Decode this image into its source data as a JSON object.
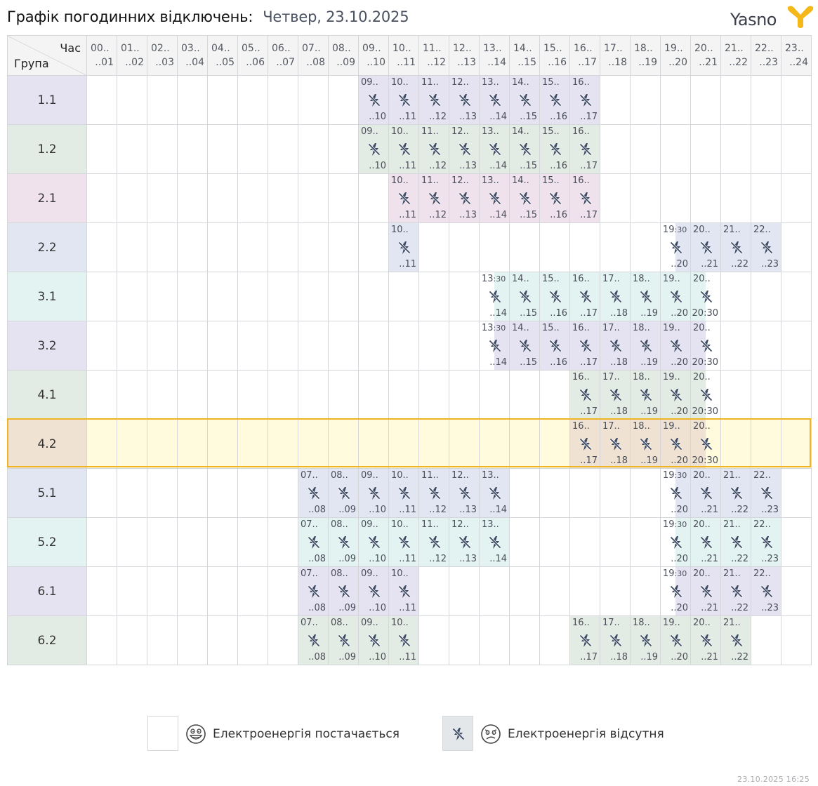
{
  "header": {
    "title": "Графік погодинних відключень:",
    "date": "Четвер, 23.10.2025",
    "logo_text": "Yasno",
    "logo_color": "#f5b81a"
  },
  "table": {
    "corner_top": "Час",
    "corner_bottom": "Група",
    "hours": [
      {
        "start": "00..",
        "end": "..01"
      },
      {
        "start": "01..",
        "end": "..02"
      },
      {
        "start": "02..",
        "end": "..03"
      },
      {
        "start": "03..",
        "end": "..04"
      },
      {
        "start": "04..",
        "end": "..05"
      },
      {
        "start": "05..",
        "end": "..06"
      },
      {
        "start": "06..",
        "end": "..07"
      },
      {
        "start": "07..",
        "end": "..08"
      },
      {
        "start": "08..",
        "end": "..09"
      },
      {
        "start": "09..",
        "end": "..10"
      },
      {
        "start": "10..",
        "end": "..11"
      },
      {
        "start": "11..",
        "end": "..12"
      },
      {
        "start": "12..",
        "end": "..13"
      },
      {
        "start": "13..",
        "end": "..14"
      },
      {
        "start": "14..",
        "end": "..15"
      },
      {
        "start": "15..",
        "end": "..16"
      },
      {
        "start": "16..",
        "end": "..17"
      },
      {
        "start": "17..",
        "end": "..18"
      },
      {
        "start": "18..",
        "end": "..19"
      },
      {
        "start": "19..",
        "end": "..20"
      },
      {
        "start": "20..",
        "end": "..21"
      },
      {
        "start": "21..",
        "end": "..22"
      },
      {
        "start": "22..",
        "end": "..23"
      },
      {
        "start": "23..",
        "end": "..24"
      }
    ],
    "outage_icon": "no-power-icon",
    "groups": [
      {
        "name": "1.1",
        "color": "#e5e3f2",
        "highlight": false,
        "off": [
          {
            "h": 9,
            "s": "09..",
            "e": "..10"
          },
          {
            "h": 10,
            "s": "10..",
            "e": "..11"
          },
          {
            "h": 11,
            "s": "11..",
            "e": "..12"
          },
          {
            "h": 12,
            "s": "12..",
            "e": "..13"
          },
          {
            "h": 13,
            "s": "13..",
            "e": "..14"
          },
          {
            "h": 14,
            "s": "14..",
            "e": "..15"
          },
          {
            "h": 15,
            "s": "15..",
            "e": "..16"
          },
          {
            "h": 16,
            "s": "16..",
            "e": "..17"
          }
        ]
      },
      {
        "name": "1.2",
        "color": "#e3ece4",
        "highlight": false,
        "off": [
          {
            "h": 9,
            "s": "09..",
            "e": "..10"
          },
          {
            "h": 10,
            "s": "10..",
            "e": "..11"
          },
          {
            "h": 11,
            "s": "11..",
            "e": "..12"
          },
          {
            "h": 12,
            "s": "12..",
            "e": "..13"
          },
          {
            "h": 13,
            "s": "13..",
            "e": "..14"
          },
          {
            "h": 14,
            "s": "14..",
            "e": "..15"
          },
          {
            "h": 15,
            "s": "15..",
            "e": "..16"
          },
          {
            "h": 16,
            "s": "16..",
            "e": "..17"
          }
        ]
      },
      {
        "name": "2.1",
        "color": "#efe2ec",
        "highlight": false,
        "off": [
          {
            "h": 10,
            "s": "10..",
            "e": "..11"
          },
          {
            "h": 11,
            "s": "11..",
            "e": "..12"
          },
          {
            "h": 12,
            "s": "12..",
            "e": "..13"
          },
          {
            "h": 13,
            "s": "13..",
            "e": "..14"
          },
          {
            "h": 14,
            "s": "14..",
            "e": "..15"
          },
          {
            "h": 15,
            "s": "15..",
            "e": "..16"
          },
          {
            "h": 16,
            "s": "16..",
            "e": "..17"
          }
        ]
      },
      {
        "name": "2.2",
        "color": "#e2e6f3",
        "highlight": false,
        "off": [
          {
            "h": 10,
            "s": "10..",
            "e": "..11"
          },
          {
            "h": 19,
            "s": "19",
            "sm": ":30",
            "e": "..20",
            "part": "second"
          },
          {
            "h": 20,
            "s": "20..",
            "e": "..21"
          },
          {
            "h": 21,
            "s": "21..",
            "e": "..22"
          },
          {
            "h": 22,
            "s": "22..",
            "e": "..23"
          }
        ]
      },
      {
        "name": "3.1",
        "color": "#e2f3f1",
        "highlight": false,
        "off": [
          {
            "h": 13,
            "s": "13",
            "sm": ":30",
            "e": "..14",
            "part": "second"
          },
          {
            "h": 14,
            "s": "14..",
            "e": "..15"
          },
          {
            "h": 15,
            "s": "15..",
            "e": "..16"
          },
          {
            "h": 16,
            "s": "16..",
            "e": "..17"
          },
          {
            "h": 17,
            "s": "17..",
            "e": "..18"
          },
          {
            "h": 18,
            "s": "18..",
            "e": "..19"
          },
          {
            "h": 19,
            "s": "19..",
            "e": "..20"
          },
          {
            "h": 20,
            "s": "20..",
            "e": "20",
            "em": ":30",
            "part": "first"
          }
        ]
      },
      {
        "name": "3.2",
        "color": "#e5e3f2",
        "highlight": false,
        "off": [
          {
            "h": 13,
            "s": "13",
            "sm": ":30",
            "e": "..14",
            "part": "second"
          },
          {
            "h": 14,
            "s": "14..",
            "e": "..15"
          },
          {
            "h": 15,
            "s": "15..",
            "e": "..16"
          },
          {
            "h": 16,
            "s": "16..",
            "e": "..17"
          },
          {
            "h": 17,
            "s": "17..",
            "e": "..18"
          },
          {
            "h": 18,
            "s": "18..",
            "e": "..19"
          },
          {
            "h": 19,
            "s": "19..",
            "e": "..20"
          },
          {
            "h": 20,
            "s": "20..",
            "e": "20",
            "em": ":30",
            "part": "first"
          }
        ]
      },
      {
        "name": "4.1",
        "color": "#e3ece4",
        "highlight": false,
        "off": [
          {
            "h": 16,
            "s": "16..",
            "e": "..17"
          },
          {
            "h": 17,
            "s": "17..",
            "e": "..18"
          },
          {
            "h": 18,
            "s": "18..",
            "e": "..19"
          },
          {
            "h": 19,
            "s": "19..",
            "e": "..20"
          },
          {
            "h": 20,
            "s": "20..",
            "e": "20",
            "em": ":30",
            "part": "first"
          }
        ]
      },
      {
        "name": "4.2",
        "color": "#efe2d3",
        "highlight": true,
        "off": [
          {
            "h": 16,
            "s": "16..",
            "e": "..17"
          },
          {
            "h": 17,
            "s": "17..",
            "e": "..18"
          },
          {
            "h": 18,
            "s": "18..",
            "e": "..19"
          },
          {
            "h": 19,
            "s": "19..",
            "e": "..20"
          },
          {
            "h": 20,
            "s": "20..",
            "e": "20",
            "em": ":30",
            "part": "first"
          }
        ]
      },
      {
        "name": "5.1",
        "color": "#e2e6f3",
        "highlight": false,
        "off": [
          {
            "h": 7,
            "s": "07..",
            "e": "..08"
          },
          {
            "h": 8,
            "s": "08..",
            "e": "..09"
          },
          {
            "h": 9,
            "s": "09..",
            "e": "..10"
          },
          {
            "h": 10,
            "s": "10..",
            "e": "..11"
          },
          {
            "h": 11,
            "s": "11..",
            "e": "..12"
          },
          {
            "h": 12,
            "s": "12..",
            "e": "..13"
          },
          {
            "h": 13,
            "s": "13..",
            "e": "..14"
          },
          {
            "h": 19,
            "s": "19",
            "sm": ":30",
            "e": "..20",
            "part": "second"
          },
          {
            "h": 20,
            "s": "20..",
            "e": "..21"
          },
          {
            "h": 21,
            "s": "21..",
            "e": "..22"
          },
          {
            "h": 22,
            "s": "22..",
            "e": "..23"
          }
        ]
      },
      {
        "name": "5.2",
        "color": "#e2f3f1",
        "highlight": false,
        "off": [
          {
            "h": 7,
            "s": "07..",
            "e": "..08"
          },
          {
            "h": 8,
            "s": "08..",
            "e": "..09"
          },
          {
            "h": 9,
            "s": "09..",
            "e": "..10"
          },
          {
            "h": 10,
            "s": "10..",
            "e": "..11"
          },
          {
            "h": 11,
            "s": "11..",
            "e": "..12"
          },
          {
            "h": 12,
            "s": "12..",
            "e": "..13"
          },
          {
            "h": 13,
            "s": "13..",
            "e": "..14"
          },
          {
            "h": 19,
            "s": "19",
            "sm": ":30",
            "e": "..20",
            "part": "second"
          },
          {
            "h": 20,
            "s": "20..",
            "e": "..21"
          },
          {
            "h": 21,
            "s": "21..",
            "e": "..22"
          },
          {
            "h": 22,
            "s": "22..",
            "e": "..23"
          }
        ]
      },
      {
        "name": "6.1",
        "color": "#e5e3f2",
        "highlight": false,
        "off": [
          {
            "h": 7,
            "s": "07..",
            "e": "..08"
          },
          {
            "h": 8,
            "s": "08..",
            "e": "..09"
          },
          {
            "h": 9,
            "s": "09..",
            "e": "..10"
          },
          {
            "h": 10,
            "s": "10..",
            "e": "..11"
          },
          {
            "h": 19,
            "s": "19",
            "sm": ":30",
            "e": "..20",
            "part": "second"
          },
          {
            "h": 20,
            "s": "20..",
            "e": "..21"
          },
          {
            "h": 21,
            "s": "21..",
            "e": "..22"
          },
          {
            "h": 22,
            "s": "22..",
            "e": "..23"
          }
        ]
      },
      {
        "name": "6.2",
        "color": "#e3ece4",
        "highlight": false,
        "off": [
          {
            "h": 7,
            "s": "07..",
            "e": "..08"
          },
          {
            "h": 8,
            "s": "08..",
            "e": "..09"
          },
          {
            "h": 9,
            "s": "09..",
            "e": "..10"
          },
          {
            "h": 10,
            "s": "10..",
            "e": "..11"
          },
          {
            "h": 16,
            "s": "16..",
            "e": "..17"
          },
          {
            "h": 17,
            "s": "17..",
            "e": "..18"
          },
          {
            "h": 18,
            "s": "18..",
            "e": "..19"
          },
          {
            "h": 19,
            "s": "19..",
            "e": "..20"
          },
          {
            "h": 20,
            "s": "20..",
            "e": "..21"
          },
          {
            "h": 21,
            "s": "21..",
            "e": "..22"
          }
        ]
      }
    ]
  },
  "legend": {
    "on_label": "Електроенергія постачається",
    "on_icon": "smiling-face-icon",
    "off_label": "Електроенергія відсутня",
    "off_icon": "sad-face-icon",
    "off_color": "#e4e7ea"
  },
  "footer": {
    "timestamp": "23.10.2025   16:25"
  }
}
